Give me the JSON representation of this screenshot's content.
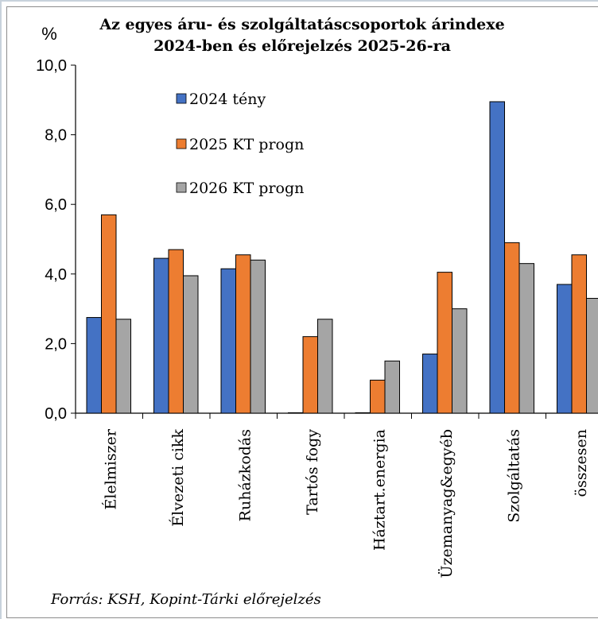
{
  "chart_data": {
    "type": "bar",
    "title_lines": [
      "Az egyes áru- és szolgáltatáscsoportok árindexe",
      "2024-ben és előrejelzés 2025-26-ra"
    ],
    "unit_label": "%",
    "ylim": [
      0,
      10
    ],
    "yticks": [
      "0,0",
      "2,0",
      "4,0",
      "6,0",
      "8,0",
      "10,0"
    ],
    "grid": false,
    "legend_position": "top-left-inside",
    "categories": [
      "Élelmiszer",
      "Élvezeti cikk",
      "Ruházkodás",
      "Tartós fogy",
      "Háztart.energia",
      "Üzemanyag&egyéb",
      "Szolgáltatás",
      "összesen"
    ],
    "series": [
      {
        "name": "2024 tény",
        "color": "#4472C4",
        "values": [
          2.75,
          4.45,
          4.15,
          0.0,
          0.0,
          1.7,
          8.95,
          3.7
        ]
      },
      {
        "name": "2025 KT progn",
        "color": "#ED7D31",
        "values": [
          5.7,
          4.7,
          4.55,
          2.2,
          0.95,
          4.05,
          4.9,
          4.55
        ]
      },
      {
        "name": "2026 KT progn",
        "color": "#A5A5A5",
        "values": [
          2.7,
          3.95,
          4.4,
          2.7,
          1.5,
          3.0,
          4.3,
          3.3
        ]
      }
    ],
    "source": "Forrás: KSH, Kopint-Tárki előrejelzés"
  }
}
